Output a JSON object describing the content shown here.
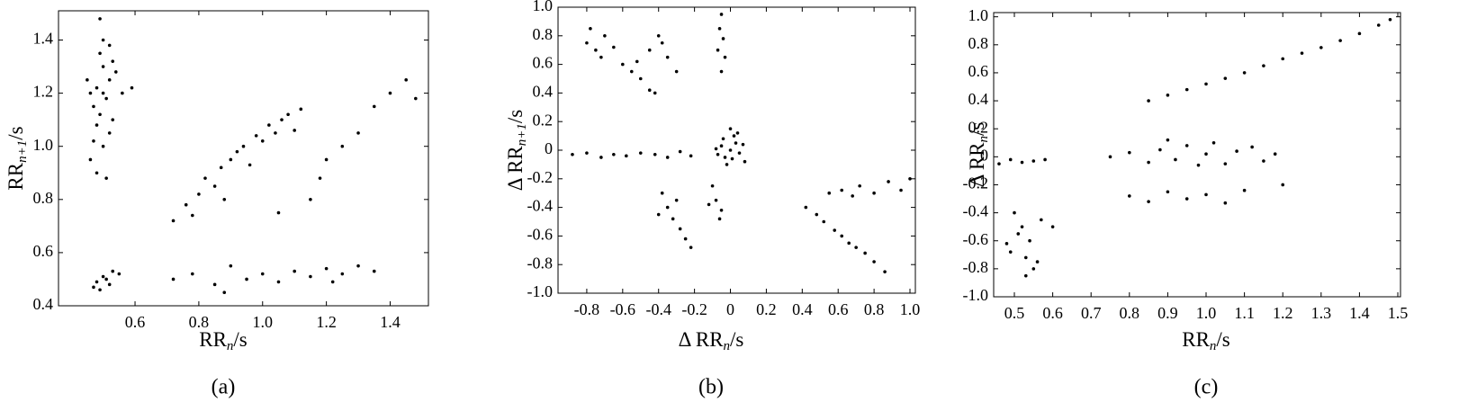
{
  "chart_data": [
    {
      "type": "scatter",
      "caption": "(a)",
      "xlabel": {
        "main": "RR",
        "sub": "n",
        "unit": "/s"
      },
      "ylabel": {
        "main": "RR",
        "sub": "n+1",
        "unit": "/s"
      },
      "color": "#000000",
      "xlim": [
        0.36,
        1.52
      ],
      "ylim": [
        0.4,
        1.51
      ],
      "xticks": [
        0.6,
        0.8,
        {
          "value": 1,
          "label": "1.0"
        },
        1.2,
        1.4
      ],
      "yticks": [
        0.4,
        0.6,
        0.8,
        {
          "value": 1,
          "label": "1.0"
        },
        1.2,
        1.4
      ],
      "x": [
        0.48,
        0.5,
        0.47,
        0.52,
        0.49,
        0.51,
        0.46,
        0.48,
        0.53,
        0.5,
        0.49,
        0.52,
        0.47,
        0.54,
        0.5,
        0.45,
        0.51,
        0.49,
        0.53,
        0.48,
        0.56,
        0.5,
        0.46,
        0.52,
        0.59,
        0.48,
        0.5,
        0.52,
        0.49,
        0.53,
        0.51,
        0.47,
        0.55,
        0.72,
        0.76,
        0.8,
        0.82,
        0.85,
        0.87,
        0.9,
        0.92,
        0.94,
        0.96,
        0.98,
        1.0,
        1.02,
        1.04,
        1.06,
        1.08,
        1.1,
        0.88,
        0.78,
        1.12,
        0.72,
        0.78,
        0.85,
        0.9,
        0.95,
        1.0,
        1.05,
        1.1,
        1.15,
        1.2,
        1.25,
        1.3,
        1.35,
        0.88,
        1.22,
        1.15,
        1.2,
        1.25,
        1.3,
        1.35,
        1.4,
        1.45,
        1.18,
        1.05,
        1.48
      ],
      "y": [
        1.22,
        1.3,
        1.15,
        1.25,
        1.35,
        1.18,
        0.95,
        0.9,
        1.1,
        1.4,
        1.48,
        1.05,
        1.02,
        1.28,
        1.2,
        1.25,
        0.88,
        1.12,
        1.32,
        1.08,
        1.2,
        1.0,
        1.2,
        1.38,
        1.22,
        0.49,
        0.51,
        0.48,
        0.46,
        0.53,
        0.5,
        0.47,
        0.52,
        0.72,
        0.78,
        0.82,
        0.88,
        0.85,
        0.92,
        0.95,
        0.98,
        1.0,
        0.93,
        1.04,
        1.02,
        1.08,
        1.05,
        1.1,
        1.12,
        1.06,
        0.8,
        0.74,
        1.14,
        0.5,
        0.52,
        0.48,
        0.55,
        0.5,
        0.52,
        0.49,
        0.53,
        0.51,
        0.54,
        0.52,
        0.55,
        0.53,
        0.45,
        0.49,
        0.8,
        0.95,
        1.0,
        1.05,
        1.15,
        1.2,
        1.25,
        0.88,
        0.75,
        1.18
      ]
    },
    {
      "type": "scatter",
      "caption": "(b)",
      "xlabel": {
        "main": "Δ RR",
        "sub": "n",
        "unit": "/s"
      },
      "ylabel": {
        "main": "Δ RR",
        "sub": "n+1",
        "unit": "/s"
      },
      "color": "#000000",
      "xlim": [
        -0.96,
        1.03
      ],
      "ylim": [
        -1,
        1
      ],
      "xticks": [
        -0.8,
        -0.6,
        -0.4,
        -0.2,
        0,
        0.2,
        0.4,
        0.6,
        0.8,
        {
          "value": 1,
          "label": "1.0"
        }
      ],
      "yticks": [
        {
          "value": -1,
          "label": "-1.0"
        },
        -0.8,
        -0.6,
        -0.4,
        -0.2,
        0,
        0.2,
        0.4,
        0.6,
        0.8,
        {
          "value": 1,
          "label": "1.0"
        }
      ],
      "x": [
        0,
        0.03,
        -0.03,
        0.05,
        -0.05,
        0.02,
        -0.02,
        0.07,
        -0.07,
        0.01,
        0.04,
        -0.04,
        0.08,
        -0.08,
        0.0,
        -0.8,
        -0.75,
        -0.7,
        -0.72,
        -0.65,
        -0.78,
        -0.6,
        -0.55,
        -0.5,
        -0.45,
        -0.42,
        -0.52,
        -0.38,
        -0.35,
        -0.3,
        -0.4,
        -0.45,
        -0.05,
        -0.06,
        -0.04,
        -0.07,
        -0.03,
        -0.05,
        -0.88,
        -0.8,
        -0.72,
        -0.65,
        -0.58,
        -0.5,
        -0.42,
        -0.35,
        -0.28,
        -0.22,
        -0.38,
        -0.35,
        -0.32,
        -0.28,
        -0.25,
        -0.22,
        -0.4,
        -0.3,
        -0.1,
        -0.08,
        -0.05,
        -0.12,
        -0.06,
        0.42,
        0.48,
        0.52,
        0.58,
        0.62,
        0.66,
        0.7,
        0.75,
        0.8,
        0.86,
        0.55,
        0.62,
        0.68,
        0.72,
        0.8,
        0.88,
        0.95,
        1.0
      ],
      "y": [
        0,
        0.05,
        -0.05,
        -0.02,
        0.03,
        0.1,
        -0.1,
        0.04,
        -0.03,
        -0.06,
        0.12,
        0.08,
        -0.08,
        0.01,
        0.15,
        0.75,
        0.7,
        0.8,
        0.65,
        0.72,
        0.85,
        0.6,
        0.55,
        0.5,
        0.42,
        0.4,
        0.62,
        0.75,
        0.65,
        0.55,
        0.8,
        0.7,
        0.95,
        0.85,
        0.78,
        0.7,
        0.65,
        0.55,
        -0.03,
        -0.02,
        -0.05,
        -0.03,
        -0.04,
        -0.02,
        -0.03,
        -0.05,
        -0.01,
        -0.04,
        -0.3,
        -0.4,
        -0.48,
        -0.55,
        -0.62,
        -0.68,
        -0.45,
        -0.35,
        -0.25,
        -0.35,
        -0.42,
        -0.38,
        -0.48,
        -0.4,
        -0.45,
        -0.5,
        -0.56,
        -0.6,
        -0.65,
        -0.68,
        -0.72,
        -0.78,
        -0.85,
        -0.3,
        -0.28,
        -0.32,
        -0.25,
        -0.3,
        -0.22,
        -0.28,
        -0.2
      ]
    },
    {
      "type": "scatter",
      "caption": "(c)",
      "xlabel": {
        "main": "RR",
        "sub": "n",
        "unit": "/s"
      },
      "ylabel": {
        "main": "Δ RR",
        "sub": "n",
        "unit": "/s"
      },
      "color": "#000000",
      "xlim": [
        0.446,
        1.507
      ],
      "ylim": [
        -1,
        1.03
      ],
      "xticks": [
        0.5,
        0.6,
        0.7,
        0.8,
        0.9,
        {
          "value": 1,
          "label": "1.0"
        },
        1.1,
        1.2,
        1.3,
        1.4,
        1.5
      ],
      "yticks": [
        {
          "value": -1,
          "label": "-1.0"
        },
        -0.8,
        -0.6,
        -0.4,
        -0.2,
        0,
        0.2,
        0.4,
        0.6,
        0.8,
        {
          "value": 1,
          "label": "1.0"
        }
      ],
      "x": [
        0.85,
        0.9,
        0.95,
        1.0,
        1.05,
        1.1,
        1.15,
        1.2,
        1.25,
        1.3,
        1.35,
        1.4,
        1.45,
        1.48,
        0.75,
        0.8,
        0.85,
        0.88,
        0.92,
        0.95,
        0.98,
        1.0,
        1.02,
        1.05,
        1.08,
        1.12,
        1.15,
        0.9,
        1.18,
        0.8,
        0.85,
        0.9,
        0.95,
        1.0,
        1.05,
        1.1,
        1.2,
        0.46,
        0.49,
        0.52,
        0.55,
        0.58,
        0.5,
        0.52,
        0.54,
        0.49,
        0.53,
        0.55,
        0.51,
        0.57,
        0.48,
        0.56,
        0.6,
        0.53
      ],
      "y": [
        0.4,
        0.44,
        0.48,
        0.52,
        0.56,
        0.6,
        0.65,
        0.7,
        0.74,
        0.78,
        0.83,
        0.88,
        0.94,
        0.98,
        0,
        0.03,
        -0.04,
        0.05,
        -0.02,
        0.08,
        -0.06,
        0.02,
        0.1,
        -0.05,
        0.04,
        0.07,
        -0.03,
        0.12,
        0.02,
        -0.28,
        -0.32,
        -0.25,
        -0.3,
        -0.27,
        -0.33,
        -0.24,
        -0.2,
        -0.05,
        -0.02,
        -0.04,
        -0.03,
        -0.02,
        -0.4,
        -0.5,
        -0.6,
        -0.68,
        -0.72,
        -0.8,
        -0.55,
        -0.45,
        -0.62,
        -0.75,
        -0.5,
        -0.85
      ]
    }
  ]
}
